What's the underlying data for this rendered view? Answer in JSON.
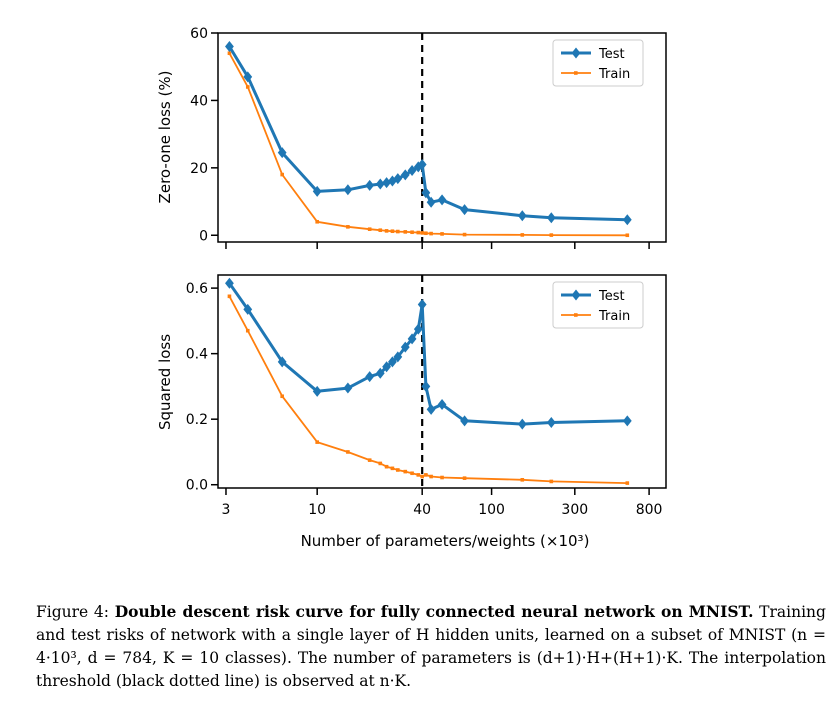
{
  "chart_data": [
    {
      "type": "line",
      "ylabel": "Zero-one loss (%)",
      "xscale": "log",
      "xlim": [
        2.7,
        1000
      ],
      "ylim": [
        -2,
        60
      ],
      "yticks": [
        0,
        20,
        40,
        60
      ],
      "xticks": [
        3,
        10,
        40,
        100,
        300,
        800
      ],
      "threshold_x": 40,
      "legend_placement": "top-right",
      "series": [
        {
          "name": "Test",
          "color": "#1f77b4",
          "marker": "diamond",
          "x": [
            3.14,
            4,
            6.3,
            10,
            15,
            20,
            23,
            25,
            27,
            29,
            32,
            35,
            38,
            40,
            42,
            45,
            52,
            70,
            150,
            220,
            600
          ],
          "y": [
            56,
            47,
            24.5,
            13,
            13.5,
            14.8,
            15.2,
            15.6,
            16.1,
            16.8,
            17.9,
            19.2,
            20.3,
            21,
            12.6,
            9.8,
            10.5,
            7.6,
            5.8,
            5.2,
            4.6
          ]
        },
        {
          "name": "Train",
          "color": "#ff7f0e",
          "marker": "square",
          "x": [
            3.14,
            4,
            6.3,
            10,
            15,
            20,
            23,
            25,
            27,
            29,
            32,
            35,
            38,
            40,
            42,
            45,
            52,
            70,
            150,
            220,
            600
          ],
          "y": [
            54,
            44,
            18,
            4,
            2.5,
            1.8,
            1.5,
            1.3,
            1.2,
            1.1,
            1.0,
            0.9,
            0.8,
            0.7,
            0.6,
            0.5,
            0.4,
            0.2,
            0.1,
            0.05,
            0
          ]
        }
      ]
    },
    {
      "type": "line",
      "ylabel": "Squared loss",
      "xlabel": "Number of parameters/weights (×10³)",
      "xscale": "log",
      "xlim": [
        2.7,
        1000
      ],
      "ylim": [
        -0.01,
        0.64
      ],
      "yticks": [
        "0.0",
        "0.2",
        "0.4",
        "0.6"
      ],
      "xticks": [
        3,
        10,
        40,
        100,
        300,
        800
      ],
      "threshold_x": 40,
      "legend_placement": "top-right",
      "series": [
        {
          "name": "Test",
          "color": "#1f77b4",
          "marker": "diamond",
          "x": [
            3.14,
            4,
            6.3,
            10,
            15,
            20,
            23,
            25,
            27,
            29,
            32,
            35,
            38,
            40,
            42,
            45,
            52,
            70,
            150,
            220,
            600
          ],
          "y": [
            0.615,
            0.535,
            0.375,
            0.285,
            0.295,
            0.33,
            0.34,
            0.36,
            0.375,
            0.39,
            0.42,
            0.445,
            0.475,
            0.55,
            0.3,
            0.23,
            0.245,
            0.195,
            0.185,
            0.19,
            0.195
          ]
        },
        {
          "name": "Train",
          "color": "#ff7f0e",
          "marker": "square",
          "x": [
            3.14,
            4,
            6.3,
            10,
            15,
            20,
            23,
            25,
            27,
            29,
            32,
            35,
            38,
            40,
            42,
            45,
            52,
            70,
            150,
            220,
            600
          ],
          "y": [
            0.575,
            0.47,
            0.27,
            0.13,
            0.1,
            0.075,
            0.065,
            0.055,
            0.05,
            0.045,
            0.04,
            0.035,
            0.03,
            0.025,
            0.03,
            0.025,
            0.022,
            0.02,
            0.015,
            0.01,
            0.005
          ]
        }
      ]
    }
  ],
  "xtick_labels": [
    "3",
    "10",
    "40",
    "100",
    "300",
    "800"
  ],
  "caption": {
    "label": "Figure 4:",
    "bold": "Double descent risk curve for fully connected neural network on MNIST.",
    "text": "Training and test risks of network with a single layer of H hidden units, learned on a subset of MNIST (n = 4·10³, d = 784, K = 10 classes). The number of parameters is (d+1)·H+(H+1)·K. The interpolation threshold (black dotted line) is observed at n·K."
  }
}
